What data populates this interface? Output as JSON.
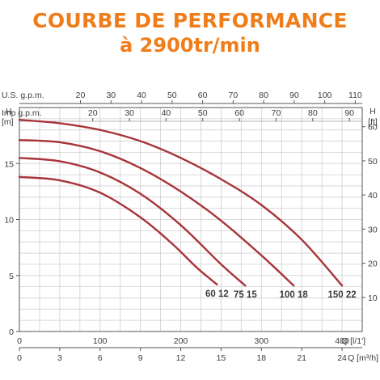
{
  "heading": {
    "line1": "COURBE DE PERFORMANCE",
    "line2": "à 2900tr/min"
  },
  "colors": {
    "title": "#f07d1a",
    "curve": "#a8343a",
    "grid": "#cfcfcf",
    "axis": "#555555",
    "text": "#3c3c3c"
  },
  "chart_data": {
    "type": "line",
    "title": "COURBE DE PERFORMANCE à 2900tr/min",
    "x_axis": {
      "label": "Q [l/1']",
      "range": [
        0,
        425
      ],
      "ticks": [
        0,
        100,
        200,
        300,
        400
      ]
    },
    "x_axis_m3h": {
      "label": "Q [m³/h]",
      "range": [
        0,
        25.5
      ],
      "ticks": [
        0,
        3,
        6,
        9,
        12,
        15,
        18,
        21,
        24
      ]
    },
    "x_axis_usgpm": {
      "label": "U.S. g.p.m.",
      "ticks": [
        20,
        30,
        40,
        50,
        60,
        70,
        80,
        90,
        100,
        110
      ]
    },
    "x_axis_impgpm": {
      "label": "Imp g.p.m.",
      "ticks": [
        20,
        30,
        40,
        50,
        60,
        70,
        80,
        90
      ]
    },
    "y_axis": {
      "label": "H",
      "unit": "[m]",
      "range": [
        0,
        20
      ],
      "ticks": [
        0,
        5,
        10,
        15
      ]
    },
    "y_axis_ft": {
      "label": "H",
      "unit": "[ft]",
      "ticks": [
        10,
        20,
        30,
        40,
        50,
        60
      ]
    },
    "grid": true,
    "series": [
      {
        "name": "60 12",
        "x": [
          0,
          50,
          100,
          150,
          190,
          220,
          245
        ],
        "y": [
          13.8,
          13.5,
          12.4,
          10.2,
          7.8,
          5.7,
          4.2
        ]
      },
      {
        "name": "75 15",
        "x": [
          0,
          50,
          100,
          150,
          200,
          250,
          280
        ],
        "y": [
          15.5,
          15.2,
          14.2,
          12.3,
          9.5,
          6.0,
          4.1
        ]
      },
      {
        "name": "100 18",
        "x": [
          0,
          50,
          100,
          150,
          200,
          250,
          300,
          340
        ],
        "y": [
          17.1,
          16.9,
          16.1,
          14.6,
          12.5,
          9.9,
          6.8,
          4.1
        ]
      },
      {
        "name": "150 22",
        "x": [
          0,
          50,
          100,
          150,
          200,
          250,
          300,
          350,
          400
        ],
        "y": [
          18.9,
          18.6,
          18.0,
          17.0,
          15.5,
          13.6,
          11.3,
          8.2,
          4.1
        ]
      }
    ]
  }
}
